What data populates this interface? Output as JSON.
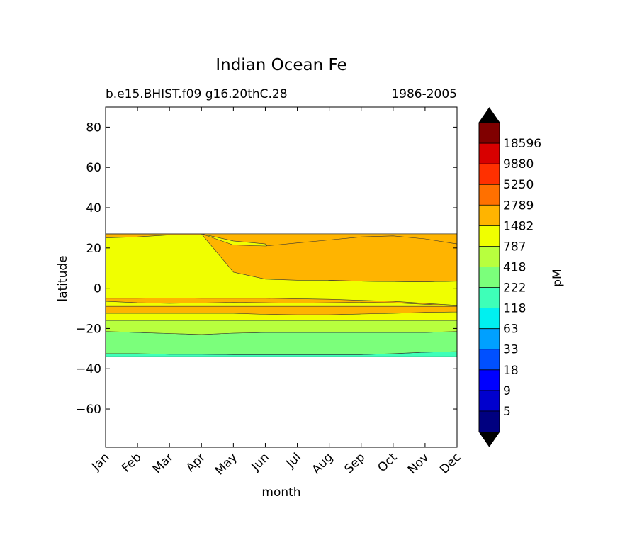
{
  "chart_data": {
    "type": "contourf",
    "title": "Indian Ocean Fe",
    "subtitle_left": "b.e15.BHIST.f09 g16.20thC.28",
    "subtitle_right": "1986-2005",
    "xlabel": "month",
    "ylabel": "latitude",
    "x_tick_labels": [
      "Jan",
      "Feb",
      "Mar",
      "Apr",
      "May",
      "Jun",
      "Jul",
      "Aug",
      "Sep",
      "Oct",
      "Nov",
      "Dec"
    ],
    "y_ticks": [
      80,
      60,
      40,
      20,
      0,
      -20,
      -40,
      -60
    ],
    "y_tick_labels": [
      "80",
      "60",
      "40",
      "20",
      "0",
      "−20",
      "−40",
      "−60"
    ],
    "ylim": [
      -79,
      90
    ],
    "xlim": [
      1,
      12
    ],
    "data_lat_range": [
      -34,
      27
    ],
    "colorbar": {
      "label": "pM",
      "extend": "both",
      "tick_labels": [
        "5",
        "9",
        "18",
        "33",
        "63",
        "118",
        "222",
        "418",
        "787",
        "1482",
        "2789",
        "5250",
        "9880",
        "18596"
      ],
      "colors": [
        "#000080",
        "#0000cd",
        "#0000ff",
        "#0050ff",
        "#00a0ff",
        "#00f0f0",
        "#3effb8",
        "#7bff7b",
        "#b8ff3e",
        "#f0ff00",
        "#ffb400",
        "#ff7000",
        "#ff3000",
        "#d80000",
        "#800000"
      ],
      "extend_low_color": "#000000",
      "extend_high_color": "#000000"
    },
    "bands": [
      {
        "level_index": 6,
        "upper": [
          -32.5,
          -32.5,
          -32.8,
          -32.8,
          -33.0,
          -33.0,
          -33.0,
          -33.0,
          -33.0,
          -32.5,
          -31.8,
          -31.5
        ],
        "lower": [
          -34,
          -34,
          -34,
          -34,
          -34,
          -34,
          -34,
          -34,
          -34,
          -34,
          -34,
          -34
        ]
      },
      {
        "level_index": 7,
        "upper": [
          -21.5,
          -22.0,
          -22.5,
          -23.0,
          -22.3,
          -22.0,
          -22.0,
          -22.0,
          -22.0,
          -22.0,
          -22.0,
          -21.5
        ],
        "lower": [
          -32.5,
          -32.5,
          -32.8,
          -32.8,
          -33.0,
          -33.0,
          -33.0,
          -33.0,
          -33.0,
          -32.5,
          -31.8,
          -31.5
        ]
      },
      {
        "level_index": 8,
        "upper": [
          -16.0,
          -16.0,
          -16.0,
          -16.0,
          -16.0,
          -16.0,
          -16.0,
          -16.0,
          -16.0,
          -16.0,
          -16.0,
          -16.0
        ],
        "lower": [
          -21.5,
          -22.0,
          -22.5,
          -23.0,
          -22.3,
          -22.0,
          -22.0,
          -22.0,
          -22.0,
          -22.0,
          -22.0,
          -21.5
        ]
      },
      {
        "level_index": 9,
        "upper": [
          27,
          27,
          27,
          27,
          27,
          27,
          27,
          27,
          27,
          27,
          27,
          27
        ],
        "lower": [
          -16,
          -16,
          -16,
          -16,
          -16,
          -16,
          -16,
          -16,
          -16,
          -16,
          -16,
          -16
        ]
      },
      {
        "level_index": 10,
        "upper": [
          -9.0,
          -9.0,
          -9.0,
          -9.0,
          -9.0,
          -9.0,
          -9.0,
          -9.0,
          -9.0,
          -9.0,
          -9.0,
          -9.0
        ],
        "lower": [
          -12.5,
          -12.5,
          -12.5,
          -12.5,
          -12.5,
          -13.0,
          -13.2,
          -13.2,
          -12.8,
          -12.5,
          -12.0,
          -11.8
        ]
      },
      {
        "level_index": 10,
        "upper": [
          -5.0,
          -5.0,
          -4.8,
          -5.0,
          -5.0,
          -5.0,
          -5.2,
          -5.5,
          -6.0,
          -6.5,
          -7.5,
          -8.5
        ],
        "lower": [
          -6.5,
          -7.2,
          -7.5,
          -7.3,
          -7.0,
          -7.2,
          -7.4,
          -7.2,
          -7.0,
          -7.2,
          -8.0,
          -8.8
        ]
      },
      {
        "level_index": 10,
        "upper": [
          27,
          27,
          27,
          27,
          27,
          27,
          27,
          27,
          27,
          27,
          27,
          27
        ],
        "lower": [
          25,
          25.5,
          26.5,
          26.5,
          27,
          22.0,
          5.0,
          4.0,
          3.5,
          3.3,
          3.2,
          3.5
        ]
      },
      {
        "level_index": 10,
        "upper": [
          27,
          27,
          27,
          27,
          27,
          27,
          27,
          27,
          27,
          27,
          27,
          27
        ],
        "lower": [
          27,
          27,
          27,
          27,
          23.5,
          22.0,
          5.0,
          4.0,
          3.5,
          3.3,
          3.2,
          3.5
        ]
      },
      {
        "level_index": 10,
        "upper": [
          27,
          27,
          27,
          27,
          21.5,
          21.0,
          22.5,
          24.0,
          25.5,
          26.0,
          24.5,
          22.0
        ],
        "lower": [
          27,
          27,
          27,
          27,
          8.0,
          4.5,
          4.0,
          4.0,
          3.5,
          3.3,
          3.2,
          3.5
        ]
      }
    ]
  }
}
